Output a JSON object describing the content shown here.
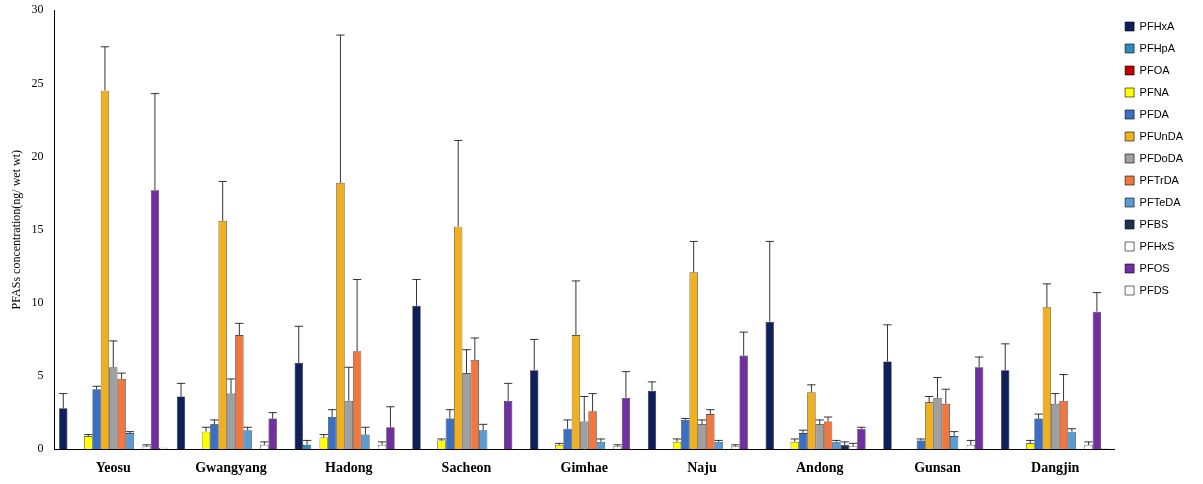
{
  "chart_data": {
    "type": "bar",
    "y_label": "PFASs concentration(ng/ wet wt)",
    "categories": [
      "Yeosu",
      "Gwangyang",
      "Hadong",
      "Sacheon",
      "Gimhae",
      "Naju",
      "Andong",
      "Gunsan",
      "Dangjin"
    ],
    "ylim": [
      0,
      30
    ],
    "yticks": [
      0,
      5,
      10,
      15,
      20,
      25,
      30
    ],
    "grid": false,
    "legend": "right",
    "series": [
      {
        "name": "PFHxA",
        "color": "#0f1f5c",
        "values": [
          2.8,
          3.6,
          5.9,
          9.8,
          5.4,
          4.0,
          8.7,
          6.0,
          5.4
        ],
        "errors": [
          1.0,
          0.9,
          2.5,
          1.8,
          2.1,
          0.6,
          5.5,
          2.5,
          1.8
        ]
      },
      {
        "name": "PFHpA",
        "color": "#2e8bc0",
        "values": [
          0,
          0,
          0.3,
          0,
          0,
          0,
          0,
          0,
          0
        ],
        "errors": [
          0,
          0,
          0.3,
          0,
          0,
          0,
          0,
          0,
          0
        ]
      },
      {
        "name": "PFOA",
        "color": "#c00000",
        "values": [
          0,
          0,
          0,
          0,
          0,
          0,
          0,
          0,
          0
        ],
        "errors": [
          0,
          0,
          0,
          0,
          0,
          0,
          0,
          0,
          0
        ]
      },
      {
        "name": "PFNA",
        "color": "#ffff00",
        "values": [
          0.9,
          1.2,
          0.8,
          0.6,
          0.3,
          0.5,
          0.5,
          0,
          0.4
        ],
        "errors": [
          0.1,
          0.3,
          0.2,
          0.1,
          0.1,
          0.2,
          0.2,
          0,
          0.2
        ]
      },
      {
        "name": "PFDA",
        "color": "#3b6fc4",
        "values": [
          4.1,
          1.7,
          2.2,
          2.1,
          1.4,
          2.0,
          1.1,
          0.6,
          2.1
        ],
        "errors": [
          0.2,
          0.3,
          0.5,
          0.6,
          0.6,
          0.1,
          0.2,
          0.1,
          0.3
        ]
      },
      {
        "name": "PFUnDA",
        "color": "#f0b020",
        "values": [
          24.5,
          15.6,
          18.2,
          15.2,
          7.8,
          12.1,
          3.9,
          3.2,
          9.7
        ],
        "errors": [
          3.0,
          2.7,
          10.1,
          5.9,
          3.7,
          2.1,
          0.5,
          0.4,
          1.6
        ]
      },
      {
        "name": "PFDoDA",
        "color": "#a0a0a0",
        "values": [
          5.6,
          3.8,
          3.3,
          5.2,
          1.9,
          1.7,
          1.7,
          3.5,
          3.1
        ],
        "errors": [
          1.8,
          1.0,
          2.3,
          1.6,
          1.7,
          0.3,
          0.3,
          1.4,
          0.7
        ]
      },
      {
        "name": "PFTrDA",
        "color": "#f07840",
        "values": [
          4.8,
          7.8,
          6.7,
          6.1,
          2.6,
          2.4,
          1.9,
          3.1,
          3.3
        ],
        "errors": [
          0.4,
          0.8,
          4.9,
          1.5,
          1.2,
          0.3,
          0.3,
          1.0,
          1.8
        ]
      },
      {
        "name": "PFTeDA",
        "color": "#5b9bd5",
        "values": [
          1.1,
          1.3,
          1.0,
          1.3,
          0.5,
          0.5,
          0.5,
          0.9,
          1.2
        ],
        "errors": [
          0.1,
          0.2,
          0.5,
          0.4,
          0.2,
          0.1,
          0.1,
          0.3,
          0.2
        ]
      },
      {
        "name": "PFBS",
        "color": "#1f3050",
        "values": [
          0,
          0,
          0,
          0,
          0,
          0,
          0.3,
          0,
          0
        ],
        "errors": [
          0,
          0,
          0,
          0,
          0,
          0,
          0.2,
          0,
          0
        ]
      },
      {
        "name": "PFHxS",
        "color": "#ffffff",
        "values": [
          0.2,
          0.3,
          0.3,
          0,
          0.2,
          0.2,
          0.2,
          0.3,
          0.3
        ],
        "errors": [
          0.1,
          0.2,
          0.2,
          0,
          0.1,
          0.1,
          0.2,
          0.3,
          0.2
        ]
      },
      {
        "name": "PFOS",
        "color": "#7030a0",
        "values": [
          17.7,
          2.1,
          1.5,
          3.3,
          3.5,
          6.4,
          1.4,
          5.6,
          9.4
        ],
        "errors": [
          6.6,
          0.4,
          1.4,
          1.2,
          1.8,
          1.6,
          0.1,
          0.7,
          1.3
        ]
      },
      {
        "name": "PFDS",
        "color": "#ffffff",
        "values": [
          0.1,
          0,
          0,
          0,
          0,
          0,
          0,
          0,
          0.05
        ],
        "errors": [
          0,
          0,
          0,
          0,
          0,
          0,
          0,
          0,
          0
        ]
      }
    ]
  }
}
